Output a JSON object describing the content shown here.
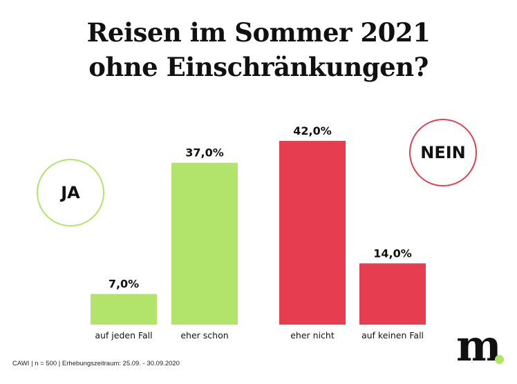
{
  "chart_data": {
    "type": "bar",
    "title_lines": [
      "Reisen im Sommer 2021",
      "ohne Einschränkungen?"
    ],
    "categories": [
      "auf jeden Fall",
      "eher schon",
      "eher nicht",
      "auf keinen Fall"
    ],
    "values": [
      7.0,
      37.0,
      42.0,
      14.0
    ],
    "value_labels": [
      "7,0%",
      "37,0%",
      "42,0%",
      "14,0%"
    ],
    "groups": [
      "ja",
      "ja",
      "nein",
      "nein"
    ],
    "colors": {
      "ja": "#b2e36a",
      "nein": "#e63e50"
    },
    "ylim": [
      0,
      42.0
    ],
    "xlabel": "",
    "ylabel": "",
    "group_labels": {
      "ja": "JA",
      "nein": "NEIN"
    }
  },
  "footer": "CAWI | n = 500 | Erhebungszeitraum: 25.09. - 30.09.2020",
  "logo": {
    "text": "m",
    "dot_color": "#b2e36a"
  }
}
